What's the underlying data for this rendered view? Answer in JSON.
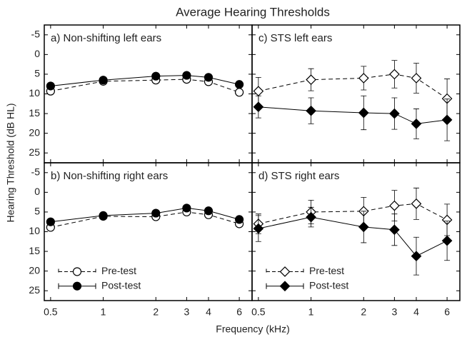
{
  "chart_data": {
    "type": "line",
    "title": "Average Hearing Thresholds",
    "x_label": "Frequency (kHz)",
    "y_label": "Hearing Threshold (dB HL)",
    "x": [
      0.5,
      1,
      2,
      3,
      4,
      6
    ],
    "xlim": [
      0.46,
      7.1
    ],
    "xticks": [
      0.5,
      1,
      2,
      3,
      4,
      6
    ],
    "x_log": true,
    "ylim": [
      -7.5,
      27.5
    ],
    "yticks": [
      -5,
      0,
      5,
      10,
      15,
      20,
      25
    ],
    "y_inverted": true,
    "series": [
      {
        "name": "Pre-test",
        "color": "#000000",
        "filled": false,
        "dashed": true
      },
      {
        "name": "Post-test",
        "color": "#000000",
        "filled": true,
        "dashed": false
      }
    ],
    "panels": [
      {
        "subtitle": "a) Non-shifting left ears",
        "marker": "circle",
        "legend": false,
        "values": [
          [
            9.3,
            6.8,
            6.5,
            6.3,
            6.9,
            9.6
          ],
          [
            8.0,
            6.5,
            5.5,
            5.3,
            5.8,
            7.6
          ]
        ]
      },
      {
        "subtitle": "c) STS left ears",
        "marker": "diamond",
        "legend": false,
        "values": [
          [
            9.3,
            6.4,
            6.0,
            5.0,
            6.0,
            11.2
          ],
          [
            13.3,
            14.3,
            14.8,
            15.0,
            17.6,
            16.6
          ]
        ],
        "errors": [
          [
            3.5,
            2.8,
            3.0,
            3.5,
            3.8,
            5.0
          ],
          [
            2.8,
            3.3,
            4.3,
            4.0,
            3.8,
            5.3
          ]
        ]
      },
      {
        "subtitle": "b) Non-shifting right ears",
        "marker": "circle",
        "legend": true,
        "values": [
          [
            8.9,
            6.1,
            6.2,
            5.0,
            5.7,
            8.0
          ],
          [
            7.5,
            5.9,
            5.3,
            4.0,
            4.7,
            6.9
          ]
        ]
      },
      {
        "subtitle": "d) STS right ears",
        "marker": "diamond",
        "legend": true,
        "values": [
          [
            8.0,
            5.0,
            4.8,
            3.4,
            2.9,
            7.0
          ],
          [
            9.2,
            6.3,
            8.8,
            9.5,
            16.2,
            12.3
          ]
        ],
        "errors": [
          [
            2.5,
            3.0,
            3.5,
            3.9,
            4.0,
            4.0
          ],
          [
            3.3,
            2.5,
            4.0,
            4.0,
            4.8,
            5.0
          ]
        ]
      }
    ]
  }
}
